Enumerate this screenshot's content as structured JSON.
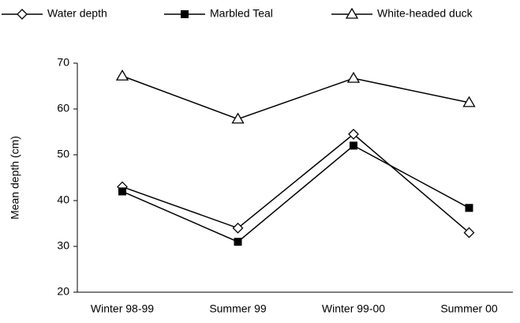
{
  "chart_data": {
    "type": "line",
    "y_label": "Mean depth (cm)",
    "categories": [
      "Winter 98-99",
      "Summer 99",
      "Winter 99-00",
      "Summer 00"
    ],
    "series": [
      {
        "name": "Water depth",
        "color": "#000000",
        "marker": "diamond-open",
        "values": [
          43,
          34,
          54.5,
          33
        ]
      },
      {
        "name": "Marbled Teal",
        "color": "#000000",
        "marker": "square-filled",
        "values": [
          42,
          31,
          52,
          38.4
        ]
      },
      {
        "name": "White-headed duck",
        "color": "#000000",
        "marker": "triangle-open",
        "values": [
          67.2,
          57.8,
          66.7,
          61.4
        ]
      }
    ],
    "ylim": [
      20,
      70
    ],
    "yticks": [
      20,
      30,
      40,
      50,
      60,
      70
    ],
    "grid": false,
    "legend": "top"
  }
}
